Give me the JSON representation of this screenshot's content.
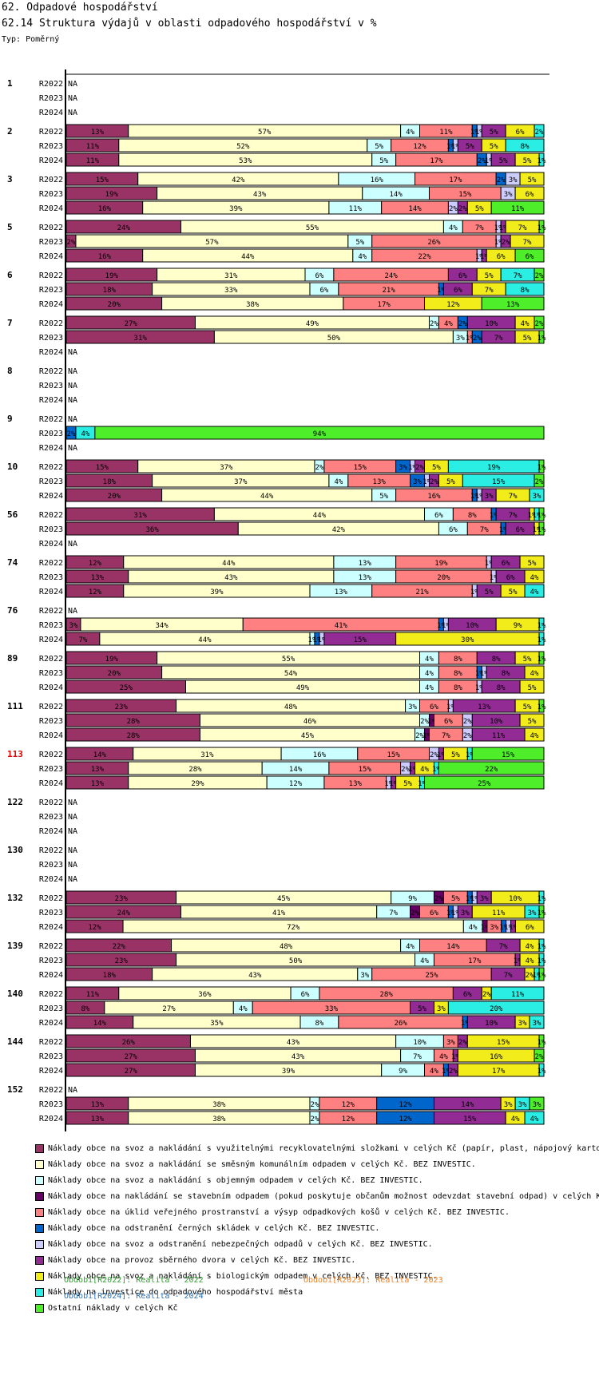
{
  "header": {
    "section_title": "62. Odpadové hospodářství",
    "chart_title": "62.14 Struktura výdajů v oblasti odpadového hospodářství v %",
    "type_label": "Typ: Poměrný"
  },
  "chart_data": {
    "type": "bar",
    "orientation": "horizontal",
    "stacked": "percent",
    "title": "62.14 Struktura výdajů v oblasti odpadového hospodářství v %",
    "xlabel": "",
    "ylabel": "",
    "xlim": [
      0,
      100
    ],
    "na_label": "NA",
    "series": [
      {
        "name": "Náklady obce na svoz a nakládání s využitelnými recyklovatelnými složkami v celých Kč (papír, plast, nápojový karto",
        "color": "#993366"
      },
      {
        "name": "Náklady obce na svoz a nakládání se směsným komunálním odpadem v celých Kč.  BEZ INVESTIC.",
        "color": "#FFFFCC"
      },
      {
        "name": "Náklady obce na svoz a nakládání s objemným odpadem v celých Kč.  BEZ INVESTIC.",
        "color": "#CCFFFF"
      },
      {
        "name": "Náklady obce na nakládání se stavebním odpadem (pokud poskytuje občanům možnost odevzdat stavební odpad) v celých K",
        "color": "#660066"
      },
      {
        "name": "Náklady obce na úklid veřejného prostranství a výsyp odpadkových košů v celých Kč.  BEZ INVESTIC.",
        "color": "#FF8080"
      },
      {
        "name": "Náklady obce na odstranění černých skládek v celých Kč.  BEZ INVESTIC.",
        "color": "#0066CC"
      },
      {
        "name": "Náklady obce na svoz a odstranění nebezpečných odpadů v celých Kč.  BEZ INVESTIC.",
        "color": "#CCCCFF"
      },
      {
        "name": "Náklady obce na provoz sběrného dvora v celých Kč.  BEZ INVESTIC.",
        "color": "#922B94"
      },
      {
        "name": "Náklady obce na svoz a nakládání s biologickým odpadem v celých Kč.  BEZ INVESTIC.",
        "color": "#F2EC1A"
      },
      {
        "name": "Náklady na investice do odpadového hospodářství města",
        "color": "#2AEDE3"
      },
      {
        "name": "Ostatní náklady v celých Kč",
        "color": "#4FEE2A"
      }
    ],
    "groups": [
      {
        "id": "1",
        "highlight": false,
        "rows": [
          {
            "period": "R2022",
            "values": null
          },
          {
            "period": "R2023",
            "values": null
          },
          {
            "period": "R2024",
            "values": null
          }
        ]
      },
      {
        "id": "2",
        "highlight": false,
        "rows": [
          {
            "period": "R2022",
            "values": [
              13,
              57,
              4,
              0,
              11,
              1,
              1,
              5,
              6,
              2,
              0
            ]
          },
          {
            "period": "R2023",
            "values": [
              11,
              52,
              5,
              0,
              12,
              1,
              1,
              5,
              5,
              8,
              0
            ]
          },
          {
            "period": "R2024",
            "values": [
              11,
              53,
              5,
              0,
              17,
              2,
              1,
              5,
              5,
              1,
              0
            ]
          }
        ]
      },
      {
        "id": "3",
        "highlight": false,
        "rows": [
          {
            "period": "R2022",
            "values": [
              15,
              42,
              16,
              0,
              17,
              2,
              3,
              0,
              5,
              0,
              0
            ]
          },
          {
            "period": "R2023",
            "values": [
              19,
              43,
              14,
              0,
              15,
              0,
              3,
              0,
              6,
              0,
              0
            ]
          },
          {
            "period": "R2024",
            "values": [
              16,
              39,
              11,
              0,
              14,
              0,
              2,
              2,
              5,
              0,
              11
            ]
          }
        ]
      },
      {
        "id": "5",
        "highlight": false,
        "rows": [
          {
            "period": "R2022",
            "values": [
              24,
              55,
              4,
              0,
              7,
              0,
              1,
              1,
              7,
              0,
              1
            ]
          },
          {
            "period": "R2023",
            "values": [
              2,
              57,
              5,
              0,
              26,
              0,
              1,
              2,
              7,
              0,
              0
            ]
          },
          {
            "period": "R2024",
            "values": [
              16,
              44,
              4,
              0,
              22,
              0,
              1,
              1,
              6,
              0,
              6
            ]
          }
        ]
      },
      {
        "id": "6",
        "highlight": false,
        "rows": [
          {
            "period": "R2022",
            "values": [
              19,
              31,
              6,
              0,
              24,
              0,
              0,
              6,
              5,
              7,
              2
            ]
          },
          {
            "period": "R2023",
            "values": [
              18,
              33,
              6,
              0,
              21,
              1,
              0,
              6,
              7,
              8,
              0
            ]
          },
          {
            "period": "R2024",
            "values": [
              20,
              38,
              0,
              0,
              17,
              0,
              0,
              0,
              12,
              0,
              13
            ]
          }
        ]
      },
      {
        "id": "7",
        "highlight": false,
        "rows": [
          {
            "period": "R2022",
            "values": [
              27,
              49,
              2,
              0,
              4,
              2,
              0,
              10,
              4,
              0,
              2
            ]
          },
          {
            "period": "R2023",
            "values": [
              31,
              50,
              3,
              0,
              1,
              2,
              0,
              7,
              5,
              0,
              1
            ]
          },
          {
            "period": "R2024",
            "values": null
          }
        ]
      },
      {
        "id": "8",
        "highlight": false,
        "rows": [
          {
            "period": "R2022",
            "values": null
          },
          {
            "period": "R2023",
            "values": null
          },
          {
            "period": "R2024",
            "values": null
          }
        ]
      },
      {
        "id": "9",
        "highlight": false,
        "rows": [
          {
            "period": "R2022",
            "values": null
          },
          {
            "period": "R2023",
            "values": [
              0,
              0,
              0,
              0,
              0,
              2,
              0,
              0,
              0,
              4,
              94
            ]
          },
          {
            "period": "R2024",
            "values": null
          }
        ]
      },
      {
        "id": "10",
        "highlight": false,
        "rows": [
          {
            "period": "R2022",
            "values": [
              15,
              37,
              2,
              0,
              15,
              3,
              1,
              2,
              5,
              19,
              1
            ]
          },
          {
            "period": "R2023",
            "values": [
              18,
              37,
              4,
              0,
              13,
              3,
              1,
              2,
              5,
              15,
              2
            ]
          },
          {
            "period": "R2024",
            "values": [
              20,
              44,
              5,
              0,
              16,
              1,
              1,
              3,
              7,
              3,
              0
            ]
          }
        ]
      },
      {
        "id": "56",
        "highlight": false,
        "rows": [
          {
            "period": "R2022",
            "values": [
              31,
              44,
              6,
              0,
              8,
              1,
              0,
              7,
              1,
              1,
              1
            ]
          },
          {
            "period": "R2023",
            "values": [
              36,
              42,
              6,
              0,
              7,
              1,
              0,
              6,
              1,
              0,
              1
            ]
          },
          {
            "period": "R2024",
            "values": null
          }
        ]
      },
      {
        "id": "74",
        "highlight": false,
        "rows": [
          {
            "period": "R2022",
            "values": [
              12,
              44,
              13,
              0,
              19,
              0,
              1,
              6,
              5,
              0,
              0
            ]
          },
          {
            "period": "R2023",
            "values": [
              13,
              43,
              13,
              0,
              20,
              0,
              1,
              6,
              4,
              0,
              0
            ]
          },
          {
            "period": "R2024",
            "values": [
              12,
              39,
              13,
              0,
              21,
              0,
              1,
              5,
              5,
              4,
              0
            ]
          }
        ]
      },
      {
        "id": "76",
        "highlight": false,
        "rows": [
          {
            "period": "R2022",
            "values": null
          },
          {
            "period": "R2023",
            "values": [
              3,
              34,
              0,
              0,
              41,
              1,
              1,
              10,
              9,
              1,
              0
            ]
          },
          {
            "period": "R2024",
            "values": [
              7,
              44,
              1,
              0,
              0,
              1,
              1,
              15,
              30,
              1,
              0
            ]
          }
        ]
      },
      {
        "id": "89",
        "highlight": false,
        "rows": [
          {
            "period": "R2022",
            "values": [
              19,
              55,
              4,
              0,
              8,
              0,
              0,
              8,
              5,
              0,
              1
            ]
          },
          {
            "period": "R2023",
            "values": [
              20,
              54,
              4,
              0,
              8,
              1,
              1,
              8,
              4,
              0,
              0
            ]
          },
          {
            "period": "R2024",
            "values": [
              25,
              49,
              4,
              0,
              8,
              0,
              1,
              8,
              5,
              0,
              0
            ]
          }
        ]
      },
      {
        "id": "111",
        "highlight": false,
        "rows": [
          {
            "period": "R2022",
            "values": [
              23,
              48,
              3,
              0,
              6,
              0,
              1,
              13,
              5,
              0,
              1
            ]
          },
          {
            "period": "R2023",
            "values": [
              28,
              46,
              2,
              1,
              6,
              0,
              2,
              10,
              5,
              0,
              0
            ]
          },
          {
            "period": "R2024",
            "values": [
              28,
              45,
              2,
              1,
              7,
              0,
              2,
              11,
              4,
              0,
              0
            ]
          }
        ]
      },
      {
        "id": "113",
        "highlight": true,
        "rows": [
          {
            "period": "R2022",
            "values": [
              14,
              31,
              16,
              0,
              15,
              0,
              2,
              1,
              5,
              1,
              15
            ]
          },
          {
            "period": "R2023",
            "values": [
              13,
              28,
              14,
              0,
              15,
              0,
              2,
              1,
              4,
              1,
              22
            ]
          },
          {
            "period": "R2024",
            "values": [
              13,
              29,
              12,
              0,
              13,
              0,
              1,
              1,
              5,
              1,
              25
            ]
          }
        ]
      },
      {
        "id": "122",
        "highlight": false,
        "rows": [
          {
            "period": "R2022",
            "values": null
          },
          {
            "period": "R2023",
            "values": null
          },
          {
            "period": "R2024",
            "values": null
          }
        ]
      },
      {
        "id": "130",
        "highlight": false,
        "rows": [
          {
            "period": "R2022",
            "values": null
          },
          {
            "period": "R2023",
            "values": null
          },
          {
            "period": "R2024",
            "values": null
          }
        ]
      },
      {
        "id": "132",
        "highlight": false,
        "rows": [
          {
            "period": "R2022",
            "values": [
              23,
              45,
              9,
              2,
              5,
              1,
              1,
              3,
              10,
              1,
              0
            ]
          },
          {
            "period": "R2023",
            "values": [
              24,
              41,
              7,
              2,
              6,
              1,
              1,
              3,
              11,
              3,
              1
            ]
          },
          {
            "period": "R2024",
            "values": [
              12,
              72,
              4,
              1,
              3,
              1,
              1,
              1,
              6,
              0,
              0
            ]
          }
        ]
      },
      {
        "id": "139",
        "highlight": false,
        "rows": [
          {
            "period": "R2022",
            "values": [
              22,
              48,
              4,
              0,
              14,
              0,
              0,
              7,
              4,
              1,
              0
            ]
          },
          {
            "period": "R2023",
            "values": [
              23,
              50,
              4,
              0,
              17,
              0,
              0,
              1,
              4,
              1,
              0
            ]
          },
          {
            "period": "R2024",
            "values": [
              18,
              43,
              3,
              0,
              25,
              0,
              0,
              7,
              2,
              1,
              1
            ]
          }
        ]
      },
      {
        "id": "140",
        "highlight": false,
        "rows": [
          {
            "period": "R2022",
            "values": [
              11,
              36,
              6,
              0,
              28,
              0,
              0,
              6,
              2,
              11,
              0
            ]
          },
          {
            "period": "R2023",
            "values": [
              8,
              27,
              4,
              0,
              33,
              0,
              0,
              5,
              3,
              20,
              0
            ]
          },
          {
            "period": "R2024",
            "values": [
              14,
              35,
              8,
              0,
              26,
              1,
              0,
              10,
              3,
              3,
              0
            ]
          }
        ]
      },
      {
        "id": "144",
        "highlight": false,
        "rows": [
          {
            "period": "R2022",
            "values": [
              26,
              43,
              10,
              0,
              3,
              0,
              0,
              2,
              15,
              0,
              1
            ]
          },
          {
            "period": "R2023",
            "values": [
              27,
              43,
              7,
              0,
              4,
              0,
              0,
              1,
              16,
              0,
              2
            ]
          },
          {
            "period": "R2024",
            "values": [
              27,
              39,
              9,
              0,
              4,
              1,
              0,
              2,
              17,
              1,
              0
            ]
          }
        ]
      },
      {
        "id": "152",
        "highlight": false,
        "rows": [
          {
            "period": "R2022",
            "values": null
          },
          {
            "period": "R2023",
            "values": [
              13,
              38,
              2,
              0,
              12,
              12,
              0,
              14,
              3,
              3,
              3
            ]
          },
          {
            "period": "R2024",
            "values": [
              13,
              38,
              2,
              0,
              12,
              12,
              0,
              15,
              4,
              4,
              0
            ]
          }
        ]
      }
    ]
  },
  "periods_legend": [
    {
      "text": "Období[R2022]: Realita - 2022",
      "color": "#2E9E2E"
    },
    {
      "text": "Období[R2023]: Realita - 2023",
      "color": "#F07F1A"
    },
    {
      "text": "Období[R2024]: Realita - 2024",
      "color": "#2872B8"
    }
  ]
}
